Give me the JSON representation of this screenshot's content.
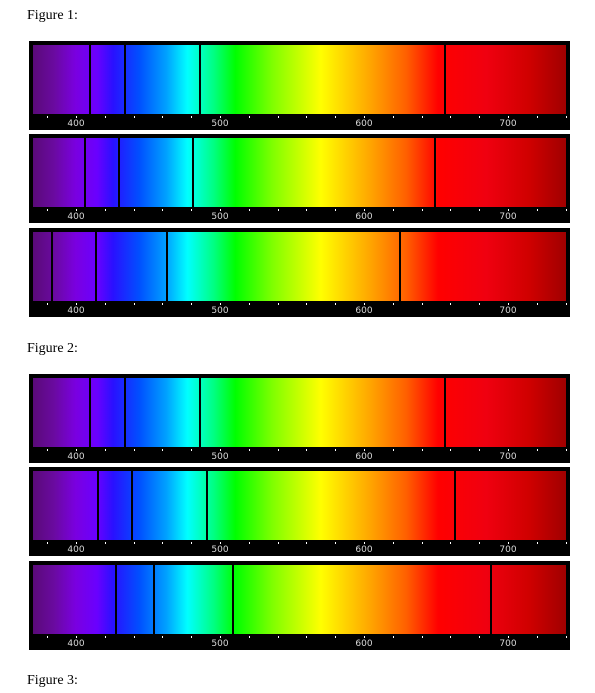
{
  "figures": [
    {
      "label": "Figure 1:",
      "spectra": [
        {
          "lines": [
            410,
            434,
            486,
            656
          ]
        },
        {
          "lines": [
            406,
            430,
            481,
            649
          ]
        },
        {
          "lines": [
            383,
            414,
            463,
            625
          ]
        }
      ]
    },
    {
      "label": "Figure 2:",
      "spectra": [
        {
          "lines": [
            410,
            434,
            486,
            656
          ]
        },
        {
          "lines": [
            415,
            439,
            491,
            663
          ]
        },
        {
          "lines": [
            428,
            454,
            509,
            688
          ]
        }
      ]
    },
    {
      "label": "Figure 3:",
      "spectra": []
    }
  ],
  "axis": {
    "range": [
      380,
      750
    ],
    "ticks": [
      400,
      500,
      600,
      700
    ],
    "tick_labels": [
      "400",
      "500",
      "600",
      "700"
    ]
  }
}
